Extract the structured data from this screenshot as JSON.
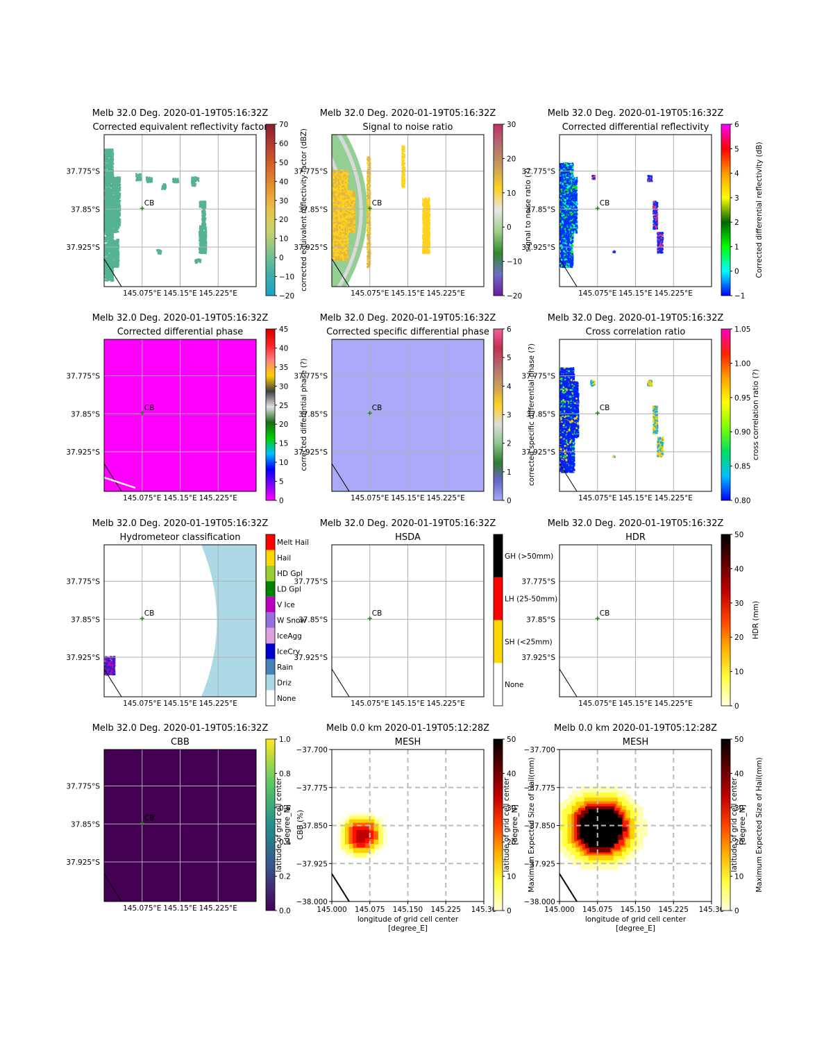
{
  "figure": {
    "tick_labels": {
      "lon": [
        "145.075°E",
        "145.15°E",
        "145.225°E"
      ],
      "lat": [
        "37.775°S",
        "37.85°S",
        "37.925°S"
      ],
      "mesh_lon": [
        "145.000",
        "145.075",
        "145.150",
        "145.225",
        "145.30"
      ],
      "mesh_lat": [
        "−37.700",
        "−37.775",
        "−37.850",
        "−37.925",
        "−38.000"
      ]
    },
    "station_label": "CB"
  },
  "chart_data": [
    {
      "type": "heatmap",
      "title": "Melb 32.0 Deg. 2020-01-19T05:16:32Z",
      "subtitle": "Corrected equivalent reflectivity factor",
      "colorbar": {
        "label": "corrected equivalent reflectivity factor (dBZ)",
        "range": [
          -20,
          70
        ],
        "ticks": [
          "−20",
          "−10",
          "0",
          "10",
          "20",
          "30",
          "40",
          "50",
          "60",
          "70"
        ],
        "colors": [
          "#1aa2c8",
          "#3fb0a8",
          "#7ec48a",
          "#c8d36a",
          "#e9c24a",
          "#e6962f",
          "#d9652a",
          "#b83b2d",
          "#8a2030"
        ]
      },
      "style": "sparse",
      "fill_color": "#55b394"
    },
    {
      "type": "heatmap",
      "title": "Melb 32.0 Deg. 2020-01-19T05:16:32Z",
      "subtitle": "Signal to noise ratio",
      "colorbar": {
        "label": "signal to noise ratio (?)",
        "range": [
          -20,
          30
        ],
        "ticks": [
          "−20",
          "−10",
          "0",
          "10",
          "20",
          "30"
        ],
        "colors": [
          "#6a1aa0",
          "#6f6fc0",
          "#2f8a2f",
          "#9fcf8a",
          "#e6e6e6",
          "#ffd21f",
          "#c79f5a",
          "#b26f6f",
          "#c0306a"
        ]
      },
      "style": "snr",
      "fill_color": "#93cf93"
    },
    {
      "type": "heatmap",
      "title": "Melb 32.0 Deg. 2020-01-19T05:16:32Z",
      "subtitle": "Corrected differential reflectivity",
      "colorbar": {
        "label": "Corrected differential reflectivity (dB)",
        "range": [
          -1,
          6
        ],
        "ticks": [
          "−1",
          "0",
          "1",
          "2",
          "3",
          "4",
          "5",
          "6"
        ],
        "colors": [
          "#0000ff",
          "#00ffff",
          "#00ff00",
          "#006600",
          "#ffff00",
          "#ff9900",
          "#ff0000",
          "#ff00ff"
        ]
      },
      "style": "zdr",
      "fill_color": "#0030ff"
    },
    {
      "type": "heatmap",
      "title": "Melb 32.0 Deg. 2020-01-19T05:16:32Z",
      "subtitle": "Corrected differential phase",
      "colorbar": {
        "label": "corrected differential phase (?)",
        "range": [
          0,
          45
        ],
        "ticks": [
          "0",
          "5",
          "10",
          "15",
          "20",
          "25",
          "30",
          "35",
          "40",
          "45"
        ],
        "colors": [
          "#ff00ff",
          "#8000ff",
          "#0000ff",
          "#00c0ff",
          "#00d000",
          "#1a6a1a",
          "#e0e0e0",
          "#404040",
          "#ffd000",
          "#ff8080",
          "#ff2020",
          "#d00000"
        ]
      },
      "style": "full",
      "fill_color": "#ff00ff"
    },
    {
      "type": "heatmap",
      "title": "Melb 32.0 Deg. 2020-01-19T05:16:32Z",
      "subtitle": "Corrected specific differential phase",
      "colorbar": {
        "label": "corrected specific differential phase (?)",
        "range": [
          0,
          6
        ],
        "ticks": [
          "0",
          "1",
          "2",
          "3",
          "4",
          "5",
          "6"
        ],
        "colors": [
          "#aaaaf8",
          "#6666cc",
          "#2f7d2f",
          "#8fc78f",
          "#dddddd",
          "#ffd21f",
          "#c79f5a",
          "#b26f6f",
          "#c03050",
          "#f060a0"
        ]
      },
      "style": "full",
      "fill_color": "#aaaaf8"
    },
    {
      "type": "heatmap",
      "title": "Melb 32.0 Deg. 2020-01-19T05:16:32Z",
      "subtitle": "Cross correlation ratio",
      "colorbar": {
        "label": "cross correlation ratio (?)",
        "range": [
          0.8,
          1.05
        ],
        "ticks": [
          "0.80",
          "0.85",
          "0.90",
          "0.95",
          "1.00",
          "1.05"
        ],
        "colors": [
          "#0000ff",
          "#00c0ff",
          "#00e060",
          "#80ff00",
          "#ffff00",
          "#ffa000",
          "#ff2000",
          "#ff00c0"
        ]
      },
      "style": "rhohv",
      "fill_color": "#0020ff"
    },
    {
      "type": "heatmap",
      "title": "Melb 32.0 Deg. 2020-01-19T05:16:32Z",
      "subtitle": "Hydrometeor classification",
      "colorbar": {
        "categorical": true,
        "categories": [
          "None",
          "Driz",
          "Rain",
          "IceCry",
          "IceAgg",
          "W Snow",
          "V Ice",
          "LD Gpl",
          "HD Gpl",
          "Hail",
          "Melt Hail"
        ],
        "colors": [
          "#ffffff",
          "#add8e6",
          "#4682b4",
          "#0000cd",
          "#dda0dd",
          "#9370db",
          "#c000c0",
          "#008000",
          "#9acd32",
          "#ffd700",
          "#ff0000"
        ]
      },
      "style": "hca",
      "fill_color": "#add8e6"
    },
    {
      "type": "heatmap",
      "title": "Melb 32.0 Deg. 2020-01-19T05:16:32Z",
      "subtitle": "HSDA",
      "colorbar": {
        "categorical": true,
        "categories": [
          "None",
          "SH (<25mm)",
          "LH (25-50mm)",
          "GH (>50mm)"
        ],
        "colors": [
          "#ffffff",
          "#ffd700",
          "#ff0000",
          "#000000"
        ]
      },
      "style": "empty",
      "fill_color": "#ffffff"
    },
    {
      "type": "heatmap",
      "title": "Melb 32.0 Deg. 2020-01-19T05:16:32Z",
      "subtitle": "HDR",
      "colorbar": {
        "label": "HDR (mm)",
        "range": [
          0,
          50
        ],
        "ticks": [
          "0",
          "10",
          "20",
          "30",
          "40",
          "50"
        ],
        "colors": [
          "#ffffe0",
          "#ffff40",
          "#ffb000",
          "#ff4000",
          "#c00000",
          "#600000",
          "#000000"
        ]
      },
      "style": "empty",
      "fill_color": "#ffffff"
    },
    {
      "type": "heatmap",
      "title": "Melb 32.0 Deg. 2020-01-19T05:16:32Z",
      "subtitle": "CBB",
      "colorbar": {
        "label": "CBB (%)",
        "range": [
          0,
          1
        ],
        "ticks": [
          "0.0",
          "0.2",
          "0.4",
          "0.6",
          "0.8",
          "1.0"
        ],
        "colors": [
          "#440154",
          "#3b528b",
          "#21918c",
          "#5ec962",
          "#fde725"
        ],
        "overlay_label": "latitude of grid cell center\n[degree_N]"
      },
      "style": "full",
      "fill_color": "#440154"
    },
    {
      "type": "heatmap",
      "title": "Melb 0.0 km 2020-01-19T05:12:28Z",
      "subtitle": "MESH",
      "xlabel": "longitude of grid cell center\n[degree_E]",
      "colorbar": {
        "label": "Maximum Expected Size of Hail(mm)",
        "range": [
          0,
          50
        ],
        "ticks": [
          "0",
          "10",
          "20",
          "30",
          "40",
          "50"
        ],
        "colors": [
          "#ffffe0",
          "#ffff40",
          "#ffb000",
          "#ff4000",
          "#c00000",
          "#600000",
          "#000000"
        ],
        "overlay_label": "latitude of grid cell center\n[degree_N]"
      },
      "style": "mesh_small",
      "fill_color": "#ffffff"
    },
    {
      "type": "heatmap",
      "title": "Melb 0.0 km 2020-01-19T05:12:28Z",
      "subtitle": "MESH",
      "xlabel": "longitude of grid cell center\n[degree_E]",
      "colorbar": {
        "label": "Maximum Expected Size of Hail(mm)",
        "range": [
          0,
          50
        ],
        "ticks": [
          "0",
          "10",
          "20",
          "30",
          "40",
          "50"
        ],
        "colors": [
          "#ffffe0",
          "#ffff40",
          "#ffb000",
          "#ff4000",
          "#c00000",
          "#600000",
          "#000000"
        ],
        "overlay_label": "latitude of grid cell center\n[degree_N]"
      },
      "style": "mesh_big",
      "fill_color": "#ffffff"
    }
  ]
}
